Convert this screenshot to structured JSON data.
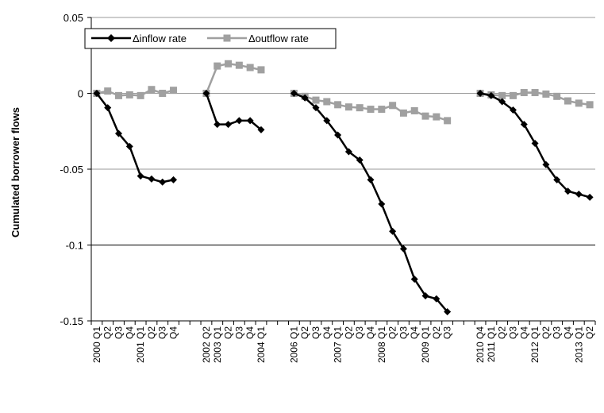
{
  "chart_data": {
    "type": "line",
    "ylabel": "Cumulated borrower flows",
    "xlabel": "",
    "ylim": [
      -0.15,
      0.05
    ],
    "yticks": [
      0.05,
      0,
      -0.05,
      -0.1,
      -0.15
    ],
    "ytick_labels": [
      "0.05",
      "0",
      "-0.05",
      "-0.1",
      "-0.15"
    ],
    "grid": "horizontal",
    "legend_position": "top-left",
    "categories": [
      "2000 Q1",
      "Q2",
      "Q3",
      "Q4",
      "2001 Q1",
      "Q2",
      "Q3",
      "Q4",
      "",
      "",
      "2002 Q2",
      "2003 Q1",
      "Q2",
      "Q3",
      "Q4",
      "2004 Q1",
      "",
      "",
      "2006 Q1",
      "Q2",
      "Q3",
      "Q4",
      "2007 Q1",
      "Q2",
      "Q3",
      "Q4",
      "2008 Q1",
      "Q2",
      "Q3",
      "Q4",
      "2009 Q1",
      "Q2",
      "Q3",
      "",
      "",
      "2010 Q4",
      "2011 Q1",
      "Q2",
      "Q3",
      "Q4",
      "2012 Q1",
      "Q2",
      "Q3",
      "Q4",
      "2013 Q1",
      "Q2"
    ],
    "series": [
      {
        "name": "Δinflow rate",
        "color": "#000000",
        "marker": "diamond",
        "values": [
          0,
          -0.0095,
          -0.0265,
          -0.035,
          -0.0545,
          -0.0565,
          -0.0585,
          -0.057,
          null,
          null,
          0,
          -0.0205,
          -0.0205,
          -0.018,
          -0.018,
          -0.024,
          null,
          null,
          0,
          -0.003,
          -0.0095,
          -0.018,
          -0.0275,
          -0.0385,
          -0.044,
          -0.057,
          -0.073,
          -0.091,
          -0.1025,
          -0.1225,
          -0.1335,
          -0.1355,
          -0.144,
          null,
          null,
          0,
          -0.0015,
          -0.0055,
          -0.011,
          -0.0205,
          -0.033,
          -0.047,
          -0.057,
          -0.0645,
          -0.0665,
          -0.0685
        ]
      },
      {
        "name": "Δoutflow rate",
        "color": "#a0a0a0",
        "marker": "square",
        "values": [
          0,
          0.0015,
          -0.0015,
          -0.001,
          -0.0015,
          0.0025,
          0,
          0.002,
          null,
          null,
          0,
          0.018,
          0.0195,
          0.0185,
          0.017,
          0.0155,
          null,
          null,
          0,
          -0.002,
          -0.0045,
          -0.0055,
          -0.0075,
          -0.009,
          -0.0095,
          -0.0105,
          -0.0105,
          -0.008,
          -0.013,
          -0.0115,
          -0.015,
          -0.0155,
          -0.018,
          null,
          null,
          0,
          -0.001,
          -0.0015,
          -0.0015,
          0.0005,
          0.0005,
          -0.0005,
          -0.002,
          -0.005,
          -0.0065,
          -0.0075
        ]
      }
    ]
  }
}
